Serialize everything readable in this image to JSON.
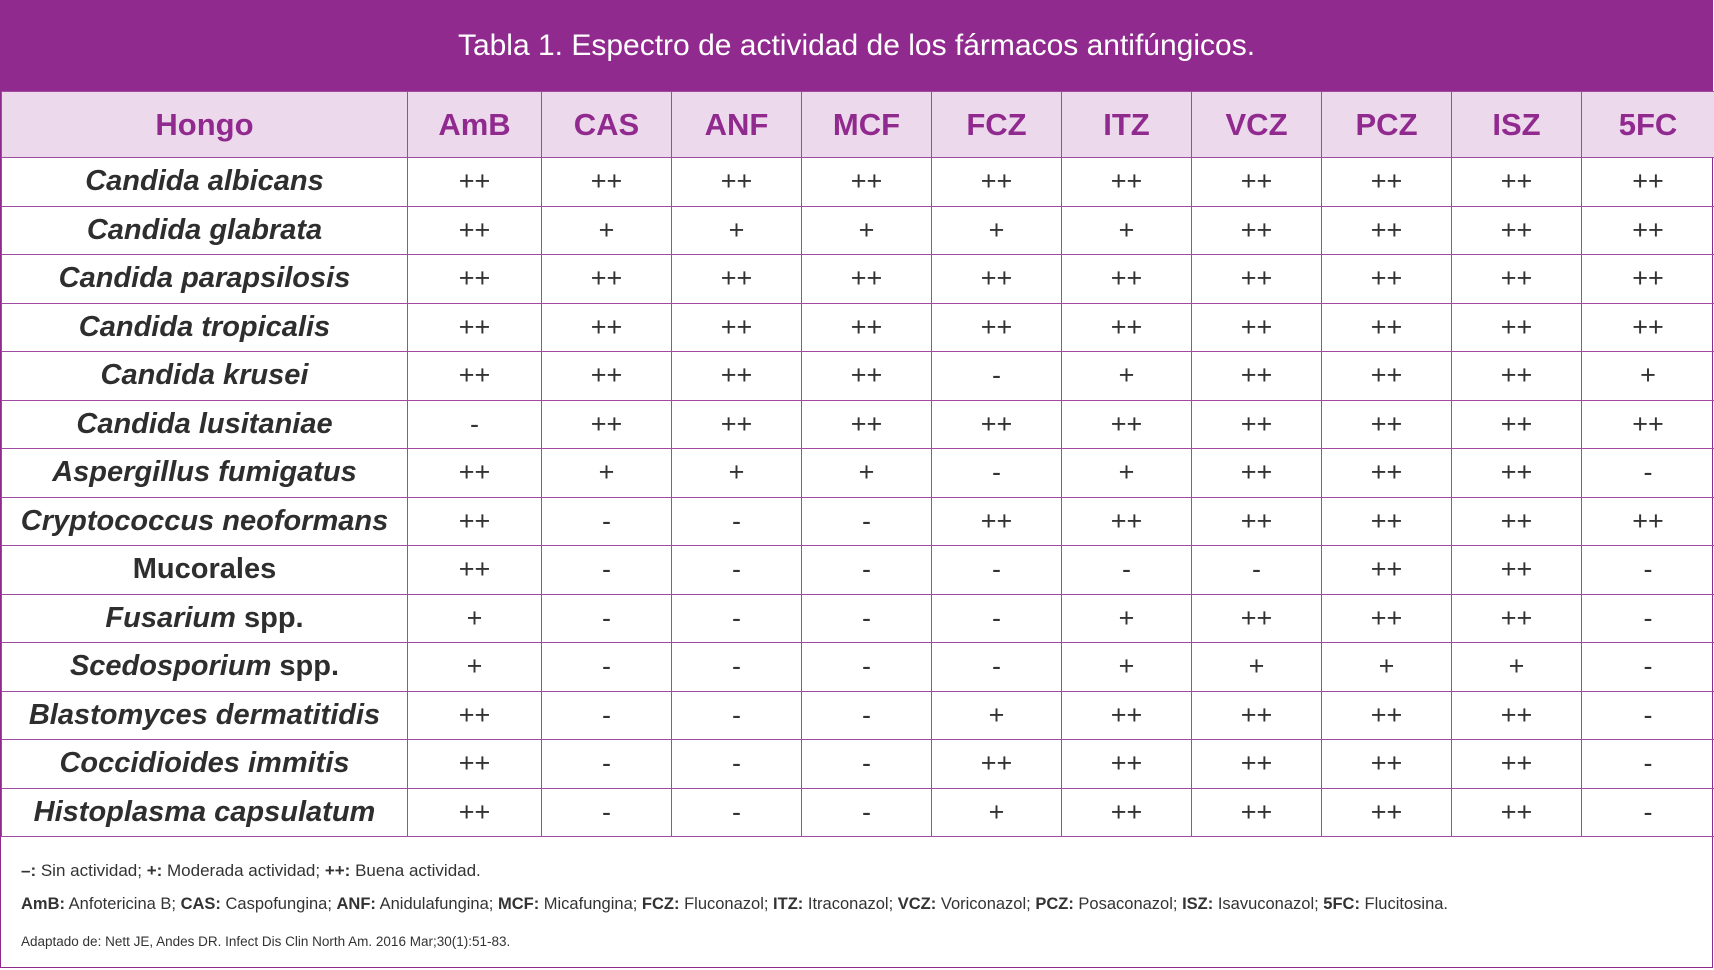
{
  "title": "Tabla 1.  Espectro de actividad de los fármacos antifúngicos.",
  "table": {
    "headers": [
      "Hongo",
      "AmB",
      "CAS",
      "ANF",
      "MCF",
      "FCZ",
      "ITZ",
      "VCZ",
      "PCZ",
      "ISZ",
      "5FC"
    ],
    "rows": [
      {
        "name": "Candida albicans",
        "suffix": "",
        "values": [
          "++",
          "++",
          "++",
          "++",
          "++",
          "++",
          "++",
          "++",
          "++",
          "++"
        ]
      },
      {
        "name": "Candida glabrata",
        "suffix": "",
        "values": [
          "++",
          "+",
          "+",
          "+",
          "+",
          "+",
          "++",
          "++",
          "++",
          "++"
        ]
      },
      {
        "name": "Candida parapsilosis",
        "suffix": "",
        "values": [
          "++",
          "++",
          "++",
          "++",
          "++",
          "++",
          "++",
          "++",
          "++",
          "++"
        ]
      },
      {
        "name": "Candida tropicalis",
        "suffix": "",
        "values": [
          "++",
          "++",
          "++",
          "++",
          "++",
          "++",
          "++",
          "++",
          "++",
          "++"
        ]
      },
      {
        "name": "Candida krusei",
        "suffix": "",
        "values": [
          "++",
          "++",
          "++",
          "++",
          "-",
          "+",
          "++",
          "++",
          "++",
          "+"
        ]
      },
      {
        "name": "Candida lusitaniae",
        "suffix": "",
        "values": [
          "-",
          "++",
          "++",
          "++",
          "++",
          "++",
          "++",
          "++",
          "++",
          "++"
        ]
      },
      {
        "name": "Aspergillus fumigatus",
        "suffix": "",
        "values": [
          "++",
          "+",
          "+",
          "+",
          "-",
          "+",
          "++",
          "++",
          "++",
          "-"
        ]
      },
      {
        "name": "Cryptococcus neoformans",
        "suffix": "",
        "values": [
          "++",
          "-",
          "-",
          "-",
          "++",
          "++",
          "++",
          "++",
          "++",
          "++"
        ]
      },
      {
        "name": "",
        "suffix": "Mucorales",
        "values": [
          "++",
          "-",
          "-",
          "-",
          "-",
          "-",
          "-",
          "++",
          "++",
          "-"
        ]
      },
      {
        "name": "Fusarium",
        "suffix": " spp.",
        "values": [
          "+",
          "-",
          "-",
          "-",
          "-",
          "+",
          "++",
          "++",
          "++",
          "-"
        ]
      },
      {
        "name": "Scedosporium",
        "suffix": " spp.",
        "values": [
          "+",
          "-",
          "-",
          "-",
          "-",
          "+",
          "+",
          "+",
          "+",
          "-"
        ]
      },
      {
        "name": "Blastomyces dermatitidis",
        "suffix": "",
        "values": [
          "++",
          "-",
          "-",
          "-",
          "+",
          "++",
          "++",
          "++",
          "++",
          "-"
        ]
      },
      {
        "name": "Coccidioides immitis",
        "suffix": "",
        "values": [
          "++",
          "-",
          "-",
          "-",
          "++",
          "++",
          "++",
          "++",
          "++",
          "-"
        ]
      },
      {
        "name": "Histoplasma capsulatum",
        "suffix": "",
        "values": [
          "++",
          "-",
          "-",
          "-",
          "+",
          "++",
          "++",
          "++",
          "++",
          "-"
        ]
      }
    ]
  },
  "footnotes": {
    "legend": [
      {
        "key": "–:",
        "text": " Sin actividad; "
      },
      {
        "key": "+:",
        "text": " Moderada actividad; "
      },
      {
        "key": "++:",
        "text": " Buena actividad."
      }
    ],
    "abbreviations": [
      {
        "key": "AmB:",
        "text": " Anfotericina B; "
      },
      {
        "key": "CAS:",
        "text": " Caspofungina; "
      },
      {
        "key": "ANF:",
        "text": " Anidulafungina; "
      },
      {
        "key": "MCF:",
        "text": " Micafungina; "
      },
      {
        "key": "FCZ:",
        "text": " Fluconazol; "
      },
      {
        "key": "ITZ:",
        "text": " Itraconazol; "
      },
      {
        "key": "VCZ:",
        "text": " Voriconazol; "
      },
      {
        "key": "PCZ:",
        "text": " Posaconazol; "
      },
      {
        "key": "ISZ:",
        "text": " Isavuconazol; "
      },
      {
        "key": "5FC:",
        "text": " Flucitosina."
      }
    ],
    "source": "Adaptado de: Nett JE, Andes DR. Infect Dis Clin North Am. 2016 Mar;30(1):51-83."
  },
  "colors": {
    "accent": "#912a8e",
    "header_bg": "#ecd9ec",
    "grid": "#a14aa0"
  }
}
